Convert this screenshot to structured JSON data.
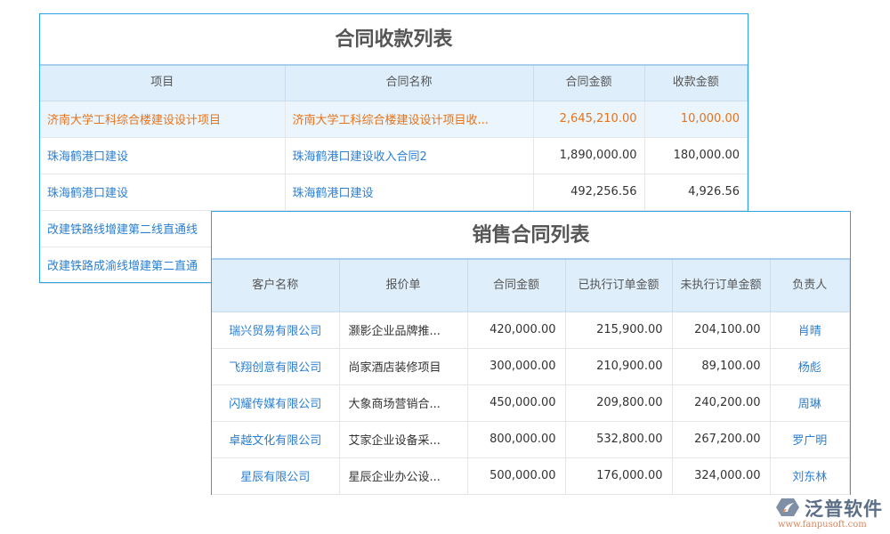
{
  "receipts": {
    "title": "合同收款列表",
    "columns": [
      "项目",
      "合同名称",
      "合同金额",
      "收款金额"
    ],
    "rows": [
      {
        "project": "济南大学工科综合楼建设设计项目",
        "contract": "济南大学工科综合楼建设设计项目收...",
        "amount": "2,645,210.00",
        "received": "10,000.00"
      },
      {
        "project": "珠海鹤港口建设",
        "contract": "珠海鹤港口建设收入合同2",
        "amount": "1,890,000.00",
        "received": "180,000.00"
      },
      {
        "project": "珠海鹤港口建设",
        "contract": "珠海鹤港口建设",
        "amount": "492,256.56",
        "received": "4,926.56"
      },
      {
        "project": "改建铁路线增建第二线直通线",
        "contract": "",
        "amount": "",
        "received": ""
      },
      {
        "project": "改建铁路成渝线增建第二直通",
        "contract": "",
        "amount": "",
        "received": ""
      }
    ]
  },
  "sales": {
    "title": "销售合同列表",
    "columns": [
      "客户名称",
      "报价单",
      "合同金额",
      "已执行订单金额",
      "未执行订单金额",
      "负责人"
    ],
    "rows": [
      {
        "customer": "瑞兴贸易有限公司",
        "quote": "灏影企业品牌推...",
        "amount": "420,000.00",
        "executed": "215,900.00",
        "pending": "204,100.00",
        "owner": "肖晴"
      },
      {
        "customer": "飞翔创意有限公司",
        "quote": "尚家酒店装修项目",
        "amount": "300,000.00",
        "executed": "210,900.00",
        "pending": "89,100.00",
        "owner": "杨彪"
      },
      {
        "customer": "闪耀传媒有限公司",
        "quote": "大象商场营销合...",
        "amount": "450,000.00",
        "executed": "209,800.00",
        "pending": "240,200.00",
        "owner": "周琳"
      },
      {
        "customer": "卓越文化有限公司",
        "quote": "艾家企业设备采...",
        "amount": "800,000.00",
        "executed": "532,800.00",
        "pending": "267,200.00",
        "owner": "罗广明"
      },
      {
        "customer": "星辰有限公司",
        "quote": "星辰企业办公设...",
        "amount": "500,000.00",
        "executed": "176,000.00",
        "pending": "324,000.00",
        "owner": "刘东林"
      }
    ]
  },
  "logo": {
    "name": "泛普软件",
    "url": "www.fanpusoft.com"
  },
  "colors": {
    "border": "#29a3e6",
    "header_bg": "#dfeefb",
    "link": "#2a7fd0",
    "highlight": "#e6731a"
  }
}
